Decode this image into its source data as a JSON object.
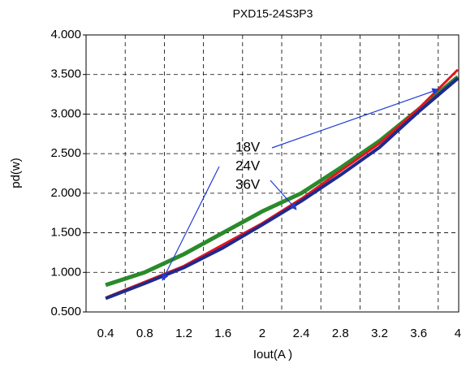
{
  "chart_data": {
    "type": "line",
    "title": "PXD15-24S3P3",
    "x_label": "Iout(A )",
    "y_label": "pd(w)",
    "categories": [
      "0.4",
      "0.8",
      "1.2",
      "1.6",
      "2",
      "2.4",
      "2.8",
      "3.2",
      "3.6",
      "4"
    ],
    "series": [
      {
        "name": "36V",
        "color": "#2a8a2a",
        "values": [
          0.84,
          1.0,
          1.23,
          1.5,
          1.77,
          2.0,
          2.32,
          2.66,
          3.06,
          3.47
        ]
      },
      {
        "name": "18V",
        "color": "#e8141e",
        "values": [
          0.68,
          0.88,
          1.08,
          1.35,
          1.62,
          1.93,
          2.28,
          2.63,
          3.07,
          3.56
        ]
      },
      {
        "name": "24V",
        "color": "#1e2a8c",
        "values": [
          0.67,
          0.86,
          1.06,
          1.31,
          1.6,
          1.9,
          2.23,
          2.58,
          3.03,
          3.45
        ]
      }
    ],
    "ylim": [
      0.5,
      4.0
    ],
    "yticks": [
      {
        "value": 0.5,
        "label": "0.500"
      },
      {
        "value": 1.0,
        "label": "1.000"
      },
      {
        "value": 1.5,
        "label": "1.500"
      },
      {
        "value": 2.0,
        "label": "2.000"
      },
      {
        "value": 2.5,
        "label": "2.500"
      },
      {
        "value": 3.0,
        "label": "3.000"
      },
      {
        "value": 3.5,
        "label": "3.500"
      },
      {
        "value": 4.0,
        "label": "4.000"
      }
    ],
    "grid": true
  }
}
